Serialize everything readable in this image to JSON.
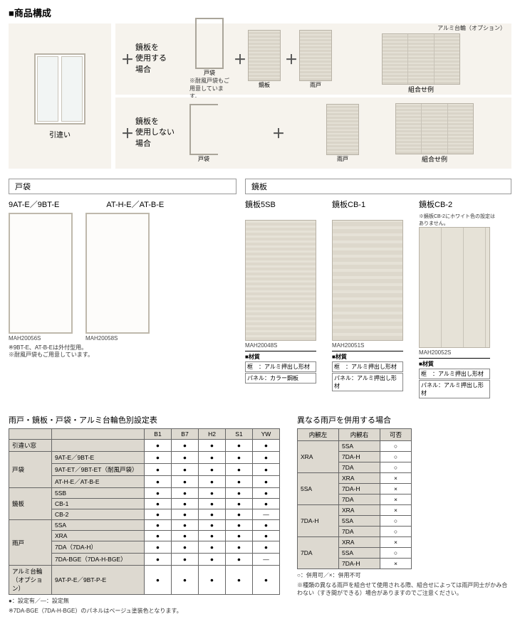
{
  "heading": "■商品構成",
  "top": {
    "window_label": "引違い",
    "row1_text": "鏡板を\n使用する\n場合",
    "row2_text": "鏡板を\n使用しない\n場合",
    "tobukuro_label": "戸袋",
    "tobukuro_note": "※耐風戸袋もご用意しています。",
    "kagami_label": "鏡板",
    "amado_label": "雨戸",
    "combo_label": "組合せ例",
    "opt_label": "アルミ台輪（オプション）"
  },
  "mid_left": {
    "title": "戸袋",
    "model1": "9AT-E／9BT-E",
    "model2": "AT-H-E／AT-B-E",
    "cap1": "MAH20056S",
    "cap2": "MAH20058S",
    "note": "※9BT-E、AT-B-Eは外付型用。\n※耐風戸袋もご用意しています。"
  },
  "mid_right": {
    "title": "鏡板",
    "m1": "鏡板5SB",
    "m2": "鏡板CB-1",
    "m3": "鏡板CB-2",
    "m3note": "※鏡板CB-2にホワイト色の設定はありません。",
    "cap1": "MAH20048S",
    "cap2": "MAH20051S",
    "cap3": "MAH20052S",
    "mat_h": "■材質",
    "mat1a": "框　：アルミ押出し形材",
    "mat1b": "パネル：カラー鋼板",
    "mat2a": "框　：アルミ押出し形材",
    "mat2b": "パネル：アルミ押出し形材",
    "mat3a": "框　：アルミ押出し形材",
    "mat3b": "パネル：アルミ押出し形材"
  },
  "table1": {
    "title": "雨戸・鏡板・戸袋・アルミ台輪色別設定表",
    "cols": [
      "B1",
      "B7",
      "H2",
      "S1",
      "YW"
    ],
    "rows": [
      {
        "g": "引違い窓",
        "n": "",
        "v": [
          "●",
          "●",
          "●",
          "●",
          "●"
        ]
      },
      {
        "g": "戸袋",
        "n": "9AT-E／9BT-E",
        "v": [
          "●",
          "●",
          "●",
          "●",
          "●"
        ]
      },
      {
        "g": "",
        "n": "9AT-ET／9BT-ET（耐風戸袋）",
        "v": [
          "●",
          "●",
          "●",
          "●",
          "●"
        ]
      },
      {
        "g": "",
        "n": "AT-H-E／AT-B-E",
        "v": [
          "●",
          "●",
          "●",
          "●",
          "●"
        ]
      },
      {
        "g": "鏡板",
        "n": "5SB",
        "v": [
          "●",
          "●",
          "●",
          "●",
          "●"
        ]
      },
      {
        "g": "",
        "n": "CB-1",
        "v": [
          "●",
          "●",
          "●",
          "●",
          "●"
        ]
      },
      {
        "g": "",
        "n": "CB-2",
        "v": [
          "●",
          "●",
          "●",
          "●",
          "―"
        ]
      },
      {
        "g": "雨戸",
        "n": "5SA",
        "v": [
          "●",
          "●",
          "●",
          "●",
          "●"
        ]
      },
      {
        "g": "",
        "n": "XRA",
        "v": [
          "●",
          "●",
          "●",
          "●",
          "●"
        ]
      },
      {
        "g": "",
        "n": "7DA（7DA-H）",
        "v": [
          "●",
          "●",
          "●",
          "●",
          "●"
        ]
      },
      {
        "g": "",
        "n": "7DA-BGE（7DA-H-BGE）",
        "v": [
          "●",
          "●",
          "●",
          "●",
          "―"
        ]
      },
      {
        "g": "アルミ台輪（オプション）",
        "n": "9AT-P-E／9BT-P-E",
        "v": [
          "●",
          "●",
          "●",
          "●",
          "●"
        ]
      }
    ],
    "foot1": "●：設定有／―：設定無",
    "foot2": "※7DA-BGE（7DA-H-BGE）のパネルはベージュ塗装色となります。"
  },
  "table2": {
    "title": "異なる雨戸を併用する場合",
    "h1": "内観左",
    "h2": "内観右",
    "h3": "可否",
    "rows": [
      {
        "l": "XRA",
        "r": "5SA",
        "c": "○"
      },
      {
        "l": "",
        "r": "7DA-H",
        "c": "○"
      },
      {
        "l": "",
        "r": "7DA",
        "c": "○"
      },
      {
        "l": "5SA",
        "r": "XRA",
        "c": "×"
      },
      {
        "l": "",
        "r": "7DA-H",
        "c": "×"
      },
      {
        "l": "",
        "r": "7DA",
        "c": "×"
      },
      {
        "l": "7DA-H",
        "r": "XRA",
        "c": "×"
      },
      {
        "l": "",
        "r": "5SA",
        "c": "○"
      },
      {
        "l": "",
        "r": "7DA",
        "c": "○"
      },
      {
        "l": "7DA",
        "r": "XRA",
        "c": "×"
      },
      {
        "l": "",
        "r": "5SA",
        "c": "○"
      },
      {
        "l": "",
        "r": "7DA-H",
        "c": "×"
      }
    ],
    "foot1": "○：併用可／×：併用不可",
    "foot2": "※種類の異なる雨戸を組合せて使用される際、組合せによっては雨戸同士がかみ合わない（すき間ができる）場合がありますのでご注意ください。"
  }
}
